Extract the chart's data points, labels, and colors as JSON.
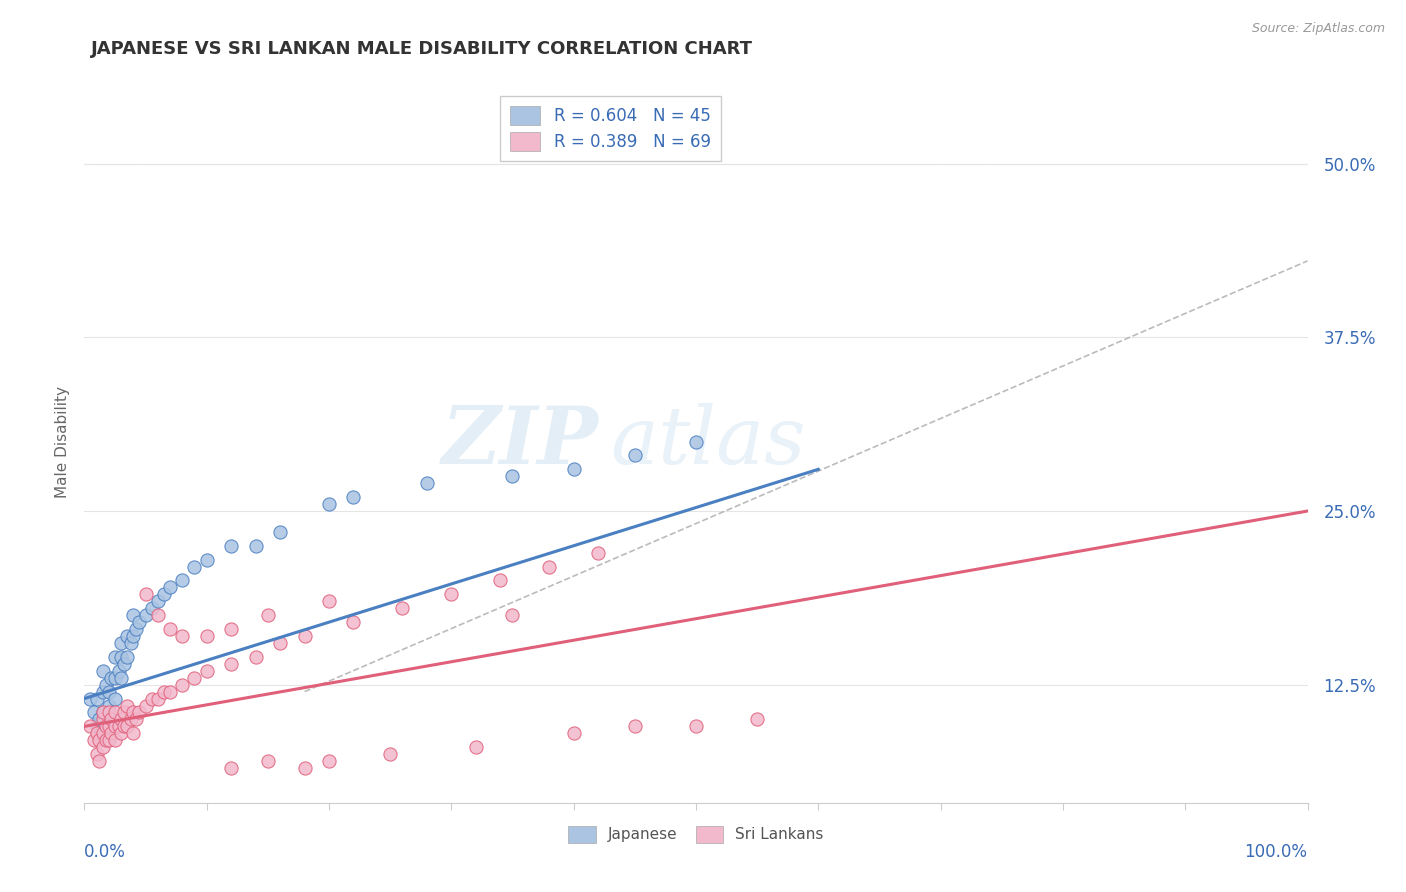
{
  "title": "JAPANESE VS SRI LANKAN MALE DISABILITY CORRELATION CHART",
  "source": "Source: ZipAtlas.com",
  "ylabel": "Male Disability",
  "ytick_labels": [
    "12.5%",
    "25.0%",
    "37.5%",
    "50.0%"
  ],
  "ytick_values": [
    0.125,
    0.25,
    0.375,
    0.5
  ],
  "xlim": [
    0.0,
    1.0
  ],
  "ylim": [
    0.04,
    0.56
  ],
  "watermark_zip": "ZIP",
  "watermark_atlas": "atlas",
  "legend_line1": "R = 0.604   N = 45",
  "legend_line2": "R = 0.389   N = 69",
  "color_japanese": "#aac4e2",
  "color_srilankans": "#f2b8cc",
  "color_line1": "#4a7fc1",
  "color_line2": "#e0607a",
  "color_diag": "#aaaaaa",
  "japanese_x": [
    0.005,
    0.008,
    0.01,
    0.01,
    0.012,
    0.015,
    0.015,
    0.015,
    0.018,
    0.02,
    0.02,
    0.022,
    0.025,
    0.025,
    0.025,
    0.028,
    0.03,
    0.03,
    0.03,
    0.032,
    0.035,
    0.035,
    0.038,
    0.04,
    0.04,
    0.042,
    0.045,
    0.05,
    0.055,
    0.06,
    0.065,
    0.07,
    0.08,
    0.09,
    0.1,
    0.12,
    0.14,
    0.16,
    0.2,
    0.22,
    0.28,
    0.35,
    0.4,
    0.45,
    0.5
  ],
  "japanese_y": [
    0.115,
    0.105,
    0.095,
    0.115,
    0.1,
    0.105,
    0.12,
    0.135,
    0.125,
    0.11,
    0.12,
    0.13,
    0.115,
    0.13,
    0.145,
    0.135,
    0.13,
    0.145,
    0.155,
    0.14,
    0.145,
    0.16,
    0.155,
    0.16,
    0.175,
    0.165,
    0.17,
    0.175,
    0.18,
    0.185,
    0.19,
    0.195,
    0.2,
    0.21,
    0.215,
    0.225,
    0.225,
    0.235,
    0.255,
    0.26,
    0.27,
    0.275,
    0.28,
    0.29,
    0.3
  ],
  "srilankans_x": [
    0.005,
    0.008,
    0.01,
    0.01,
    0.012,
    0.012,
    0.015,
    0.015,
    0.015,
    0.015,
    0.018,
    0.018,
    0.02,
    0.02,
    0.02,
    0.022,
    0.022,
    0.025,
    0.025,
    0.025,
    0.028,
    0.03,
    0.03,
    0.032,
    0.032,
    0.035,
    0.035,
    0.038,
    0.04,
    0.04,
    0.042,
    0.045,
    0.05,
    0.055,
    0.06,
    0.065,
    0.07,
    0.08,
    0.09,
    0.1,
    0.12,
    0.14,
    0.16,
    0.18,
    0.22,
    0.26,
    0.3,
    0.34,
    0.38,
    0.42,
    0.12,
    0.15,
    0.18,
    0.2,
    0.25,
    0.32,
    0.4,
    0.45,
    0.5,
    0.55,
    0.05,
    0.06,
    0.07,
    0.08,
    0.1,
    0.12,
    0.15,
    0.2,
    0.35
  ],
  "srilankans_y": [
    0.095,
    0.085,
    0.075,
    0.09,
    0.07,
    0.085,
    0.08,
    0.09,
    0.1,
    0.105,
    0.085,
    0.095,
    0.085,
    0.095,
    0.105,
    0.09,
    0.1,
    0.085,
    0.095,
    0.105,
    0.095,
    0.09,
    0.1,
    0.095,
    0.105,
    0.095,
    0.11,
    0.1,
    0.09,
    0.105,
    0.1,
    0.105,
    0.11,
    0.115,
    0.115,
    0.12,
    0.12,
    0.125,
    0.13,
    0.135,
    0.14,
    0.145,
    0.155,
    0.16,
    0.17,
    0.18,
    0.19,
    0.2,
    0.21,
    0.22,
    0.065,
    0.07,
    0.065,
    0.07,
    0.075,
    0.08,
    0.09,
    0.095,
    0.095,
    0.1,
    0.19,
    0.175,
    0.165,
    0.16,
    0.16,
    0.165,
    0.175,
    0.185,
    0.175
  ],
  "blue_line_x": [
    0.0,
    0.6
  ],
  "blue_line_y": [
    0.115,
    0.28
  ],
  "pink_line_x": [
    0.0,
    1.0
  ],
  "pink_line_y": [
    0.095,
    0.25
  ],
  "diag_line_x": [
    0.18,
    1.0
  ],
  "diag_line_y": [
    0.12,
    0.43
  ],
  "background_color": "#ffffff",
  "grid_color": "#e5e5e5"
}
